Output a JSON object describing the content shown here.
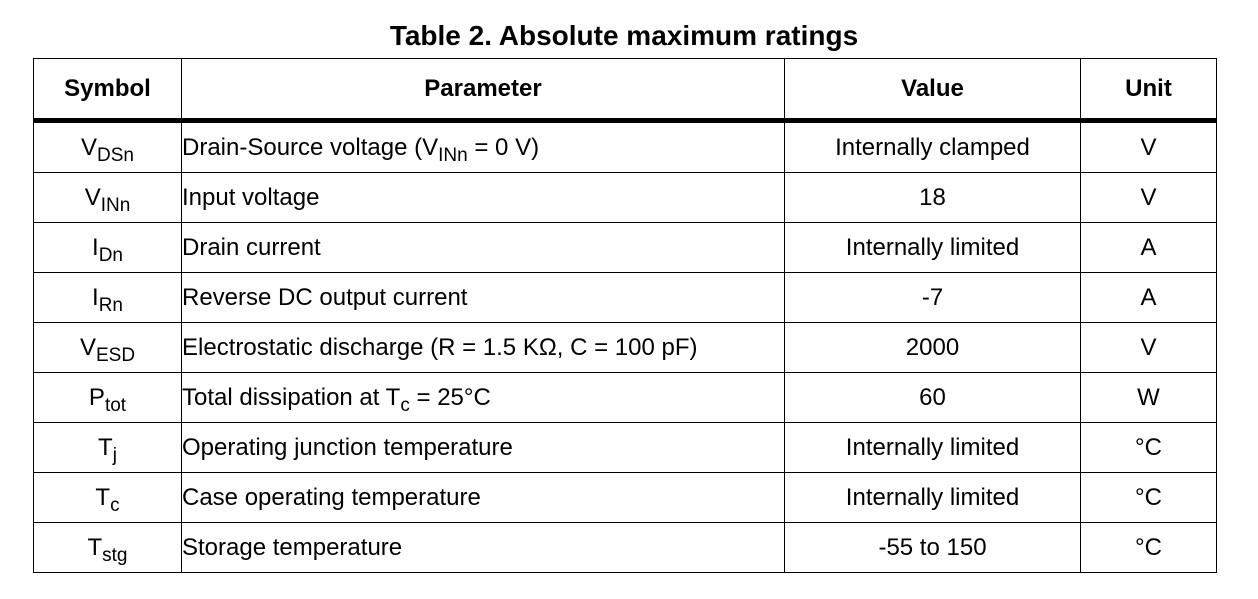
{
  "title": "Table 2. Absolute maximum ratings",
  "headers": {
    "symbol": "Symbol",
    "parameter": "Parameter",
    "value": "Value",
    "unit": "Unit"
  },
  "rows": [
    {
      "symbol": {
        "main": "V",
        "sub": "DSn"
      },
      "parameter": {
        "pre": "Drain-Source voltage (V",
        "sub": "INn",
        "post": " = 0 V)"
      },
      "value": "Internally clamped",
      "unit": "V"
    },
    {
      "symbol": {
        "main": "V",
        "sub": "INn"
      },
      "parameter": {
        "pre": "Input voltage",
        "sub": "",
        "post": ""
      },
      "value": "18",
      "unit": "V"
    },
    {
      "symbol": {
        "main": "I",
        "sub": "Dn"
      },
      "parameter": {
        "pre": "Drain current",
        "sub": "",
        "post": ""
      },
      "value": "Internally limited",
      "unit": "A"
    },
    {
      "symbol": {
        "main": "I",
        "sub": "Rn"
      },
      "parameter": {
        "pre": "Reverse DC output current",
        "sub": "",
        "post": ""
      },
      "value": "-7",
      "unit": "A"
    },
    {
      "symbol": {
        "main": "V",
        "sub": "ESD"
      },
      "parameter": {
        "pre": "Electrostatic discharge (R = 1.5 KΩ, C = 100 pF)",
        "sub": "",
        "post": ""
      },
      "value": "2000",
      "unit": "V"
    },
    {
      "symbol": {
        "main": "P",
        "sub": "tot"
      },
      "parameter": {
        "pre": "Total dissipation at T",
        "sub": "c",
        "post": " = 25°C"
      },
      "value": "60",
      "unit": "W"
    },
    {
      "symbol": {
        "main": "T",
        "sub": "j"
      },
      "parameter": {
        "pre": "Operating junction temperature",
        "sub": "",
        "post": ""
      },
      "value": "Internally limited",
      "unit": "°C"
    },
    {
      "symbol": {
        "main": "T",
        "sub": "c"
      },
      "parameter": {
        "pre": "Case operating temperature",
        "sub": "",
        "post": ""
      },
      "value": "Internally limited",
      "unit": "°C"
    },
    {
      "symbol": {
        "main": "T",
        "sub": "stg"
      },
      "parameter": {
        "pre": "Storage temperature",
        "sub": "",
        "post": ""
      },
      "value": "-55 to 150",
      "unit": "°C"
    }
  ]
}
